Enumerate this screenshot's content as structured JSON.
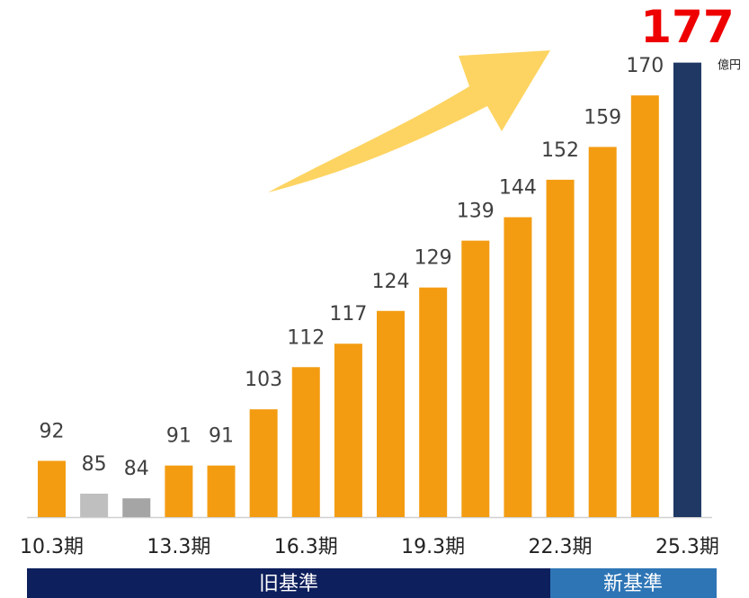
{
  "chart_data": {
    "type": "bar",
    "categories": [
      "10.3期",
      null,
      null,
      "13.3期",
      null,
      null,
      "16.3期",
      null,
      null,
      "19.3期",
      null,
      null,
      "22.3期",
      null,
      null,
      "25.3期"
    ],
    "values": [
      92,
      85,
      84,
      91,
      91,
      103,
      112,
      117,
      124,
      129,
      139,
      144,
      152,
      159,
      170,
      177
    ],
    "colors": [
      "#f39c12",
      "#bfbfbf",
      "#a5a5a5",
      "#f39c12",
      "#f39c12",
      "#f39c12",
      "#f39c12",
      "#f39c12",
      "#f39c12",
      "#f39c12",
      "#f39c12",
      "#f39c12",
      "#f39c12",
      "#f39c12",
      "#f39c12",
      "#1f3864"
    ],
    "ylim": [
      80,
      180
    ],
    "unit": "億円",
    "bands": [
      "旧基準",
      "新基準"
    ]
  }
}
